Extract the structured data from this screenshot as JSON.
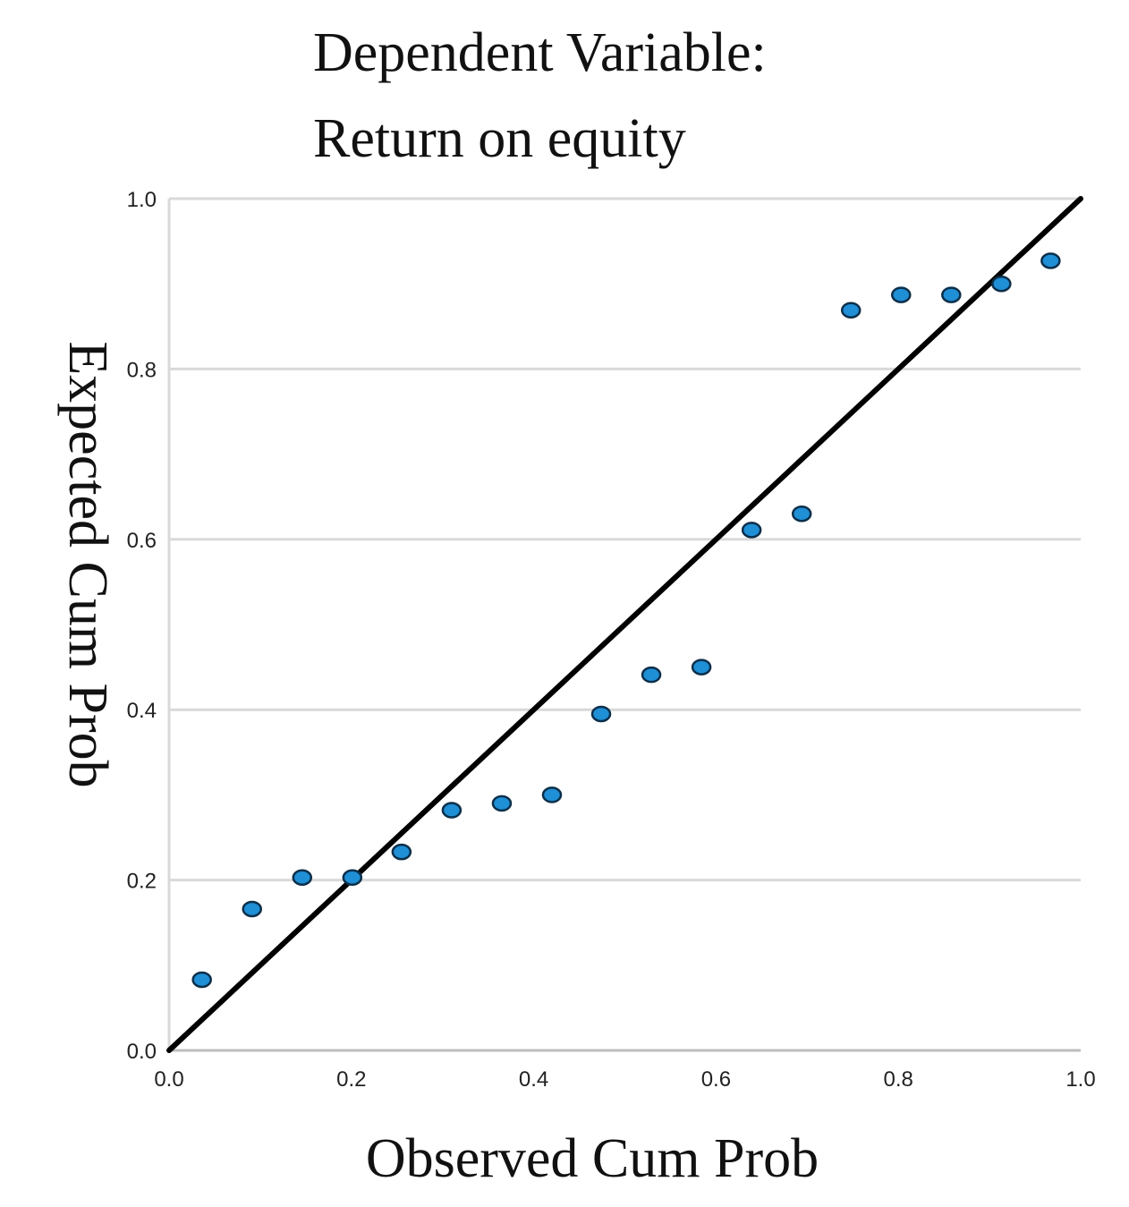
{
  "chart_data": {
    "type": "scatter",
    "title": "Dependent Variable:",
    "subtitle": "Return on equity",
    "xlabel": "Observed Cum Prob",
    "ylabel": "Expected Cum Prob",
    "xlim": [
      0.0,
      1.0
    ],
    "ylim": [
      0.0,
      1.0
    ],
    "xticks": [
      "0.0",
      "0.2",
      "0.4",
      "0.6",
      "0.8",
      "1.0"
    ],
    "yticks": [
      "0.0",
      "0.2",
      "0.4",
      "0.6",
      "0.8",
      "1.0"
    ],
    "grid": "horizontal",
    "reference_line": {
      "from": [
        0.0,
        0.0
      ],
      "to": [
        1.0,
        1.0
      ]
    },
    "point_color": "#1f8fd6",
    "line_color": "#000000",
    "grid_color": "#d9d9d9",
    "points": [
      {
        "x": 0.036,
        "y": 0.083
      },
      {
        "x": 0.091,
        "y": 0.166
      },
      {
        "x": 0.146,
        "y": 0.203
      },
      {
        "x": 0.201,
        "y": 0.203
      },
      {
        "x": 0.255,
        "y": 0.233
      },
      {
        "x": 0.31,
        "y": 0.282
      },
      {
        "x": 0.365,
        "y": 0.29
      },
      {
        "x": 0.42,
        "y": 0.3
      },
      {
        "x": 0.474,
        "y": 0.395
      },
      {
        "x": 0.529,
        "y": 0.441
      },
      {
        "x": 0.584,
        "y": 0.45
      },
      {
        "x": 0.639,
        "y": 0.611
      },
      {
        "x": 0.694,
        "y": 0.63
      },
      {
        "x": 0.748,
        "y": 0.869
      },
      {
        "x": 0.803,
        "y": 0.887
      },
      {
        "x": 0.858,
        "y": 0.887
      },
      {
        "x": 0.913,
        "y": 0.9
      },
      {
        "x": 0.967,
        "y": 0.927
      }
    ]
  }
}
